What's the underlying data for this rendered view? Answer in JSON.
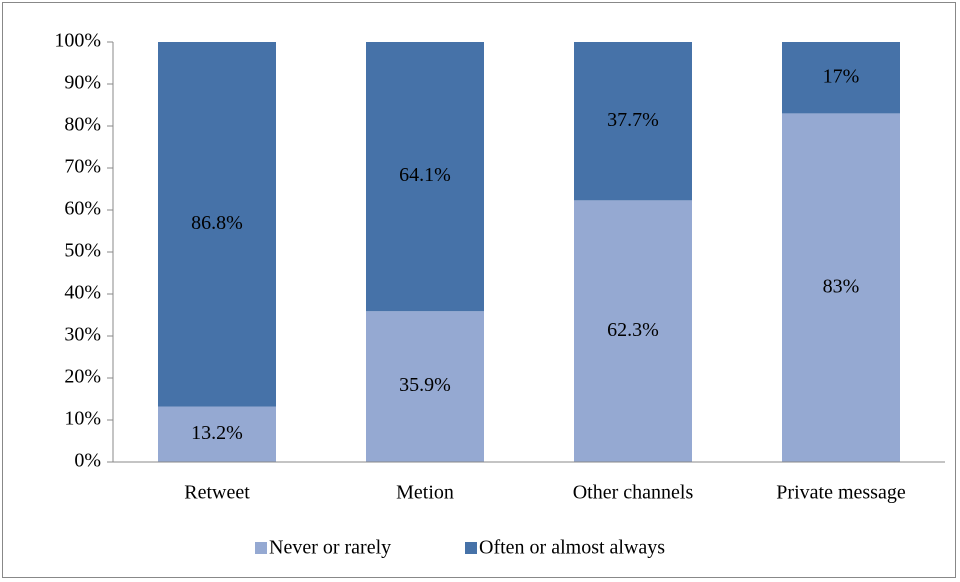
{
  "chart_data": {
    "type": "stacked_bar",
    "categories": [
      "Retweet",
      "Metion",
      "Other channels",
      "Private message"
    ],
    "series": [
      {
        "name": "Never or rarely",
        "color": "#95a9d2",
        "values": [
          13.2,
          35.9,
          62.3,
          83
        ],
        "value_labels": [
          "13.2%",
          "35.9%",
          "62.3%",
          "83%"
        ]
      },
      {
        "name": "Often or almost always",
        "color": "#4672a8",
        "values": [
          86.8,
          64.1,
          37.7,
          17
        ],
        "value_labels": [
          "86.8%",
          "64.1%",
          "37.7%",
          "17%"
        ]
      }
    ],
    "ylim": [
      0,
      100
    ],
    "yticks": [
      {
        "value": 0,
        "label": "0%"
      },
      {
        "value": 10,
        "label": "10%"
      },
      {
        "value": 20,
        "label": "20%"
      },
      {
        "value": 30,
        "label": "30%"
      },
      {
        "value": 40,
        "label": "40%"
      },
      {
        "value": 50,
        "label": "50%"
      },
      {
        "value": 60,
        "label": "60%"
      },
      {
        "value": 70,
        "label": "70%"
      },
      {
        "value": 80,
        "label": "80%"
      },
      {
        "value": 90,
        "label": "90%"
      },
      {
        "value": 100,
        "label": "100%"
      }
    ],
    "legend": "bottom"
  }
}
